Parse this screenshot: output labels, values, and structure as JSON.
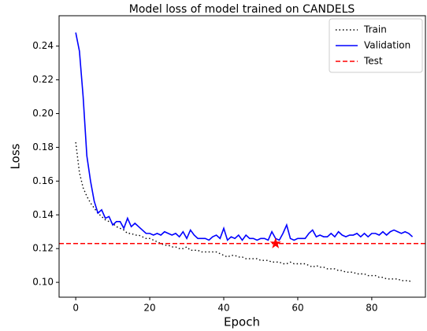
{
  "chart_data": {
    "type": "line",
    "title": "Model loss of model trained on CANDELS",
    "xlabel": "Epoch",
    "ylabel": "Loss",
    "x": [
      0,
      1,
      2,
      3,
      4,
      5,
      6,
      7,
      8,
      9,
      10,
      11,
      12,
      13,
      14,
      15,
      16,
      17,
      18,
      19,
      20,
      21,
      22,
      23,
      24,
      25,
      26,
      27,
      28,
      29,
      30,
      31,
      32,
      33,
      34,
      35,
      36,
      37,
      38,
      39,
      40,
      41,
      42,
      43,
      44,
      45,
      46,
      47,
      48,
      49,
      50,
      51,
      52,
      53,
      54,
      55,
      56,
      57,
      58,
      59,
      60,
      61,
      62,
      63,
      64,
      65,
      66,
      67,
      68,
      69,
      70,
      71,
      72,
      73,
      74,
      75,
      76,
      77,
      78,
      79,
      80,
      81,
      82,
      83,
      84,
      85,
      86,
      87,
      88,
      89,
      90,
      91
    ],
    "series": [
      {
        "name": "Train",
        "color": "#000000",
        "style": "dotted",
        "values": [
          0.183,
          0.165,
          0.156,
          0.151,
          0.147,
          0.144,
          0.141,
          0.139,
          0.137,
          0.136,
          0.135,
          0.133,
          0.132,
          0.131,
          0.129,
          0.129,
          0.128,
          0.128,
          0.127,
          0.126,
          0.126,
          0.125,
          0.124,
          0.123,
          0.122,
          0.122,
          0.121,
          0.121,
          0.12,
          0.12,
          0.121,
          0.119,
          0.119,
          0.119,
          0.118,
          0.118,
          0.118,
          0.118,
          0.118,
          0.117,
          0.116,
          0.115,
          0.116,
          0.116,
          0.115,
          0.115,
          0.114,
          0.114,
          0.114,
          0.114,
          0.113,
          0.113,
          0.113,
          0.112,
          0.112,
          0.112,
          0.111,
          0.111,
          0.112,
          0.111,
          0.111,
          0.111,
          0.111,
          0.11,
          0.109,
          0.11,
          0.109,
          0.109,
          0.108,
          0.108,
          0.108,
          0.107,
          0.107,
          0.106,
          0.106,
          0.106,
          0.105,
          0.105,
          0.105,
          0.104,
          0.104,
          0.104,
          0.103,
          0.103,
          0.102,
          0.102,
          0.102,
          0.102,
          0.101,
          0.101,
          0.101,
          0.1
        ]
      },
      {
        "name": "Validation",
        "color": "#0000ff",
        "style": "solid",
        "values": [
          0.248,
          0.237,
          0.21,
          0.175,
          0.16,
          0.148,
          0.141,
          0.143,
          0.138,
          0.139,
          0.134,
          0.136,
          0.136,
          0.132,
          0.138,
          0.133,
          0.135,
          0.133,
          0.131,
          0.129,
          0.129,
          0.128,
          0.129,
          0.128,
          0.13,
          0.129,
          0.128,
          0.129,
          0.127,
          0.13,
          0.126,
          0.131,
          0.128,
          0.126,
          0.126,
          0.126,
          0.125,
          0.127,
          0.128,
          0.126,
          0.132,
          0.125,
          0.127,
          0.126,
          0.128,
          0.125,
          0.128,
          0.126,
          0.126,
          0.125,
          0.126,
          0.126,
          0.125,
          0.13,
          0.126,
          0.125,
          0.129,
          0.134,
          0.126,
          0.125,
          0.126,
          0.126,
          0.126,
          0.129,
          0.131,
          0.127,
          0.128,
          0.127,
          0.127,
          0.129,
          0.127,
          0.13,
          0.128,
          0.127,
          0.128,
          0.128,
          0.129,
          0.127,
          0.129,
          0.127,
          0.129,
          0.129,
          0.128,
          0.13,
          0.128,
          0.13,
          0.131,
          0.13,
          0.129,
          0.13,
          0.129,
          0.127
        ]
      },
      {
        "name": "Test",
        "color": "#ff0000",
        "style": "dashed",
        "value": 0.123
      }
    ],
    "marker": {
      "x": 54,
      "y": 0.123,
      "color": "#ff0000"
    },
    "xlim": [
      -4.5,
      94.5
    ],
    "xticks": [
      0,
      20,
      40,
      60,
      80
    ],
    "ylim": [
      0.0912,
      0.258
    ],
    "yticks": [
      {
        "value": 0.1,
        "label": "0.10"
      },
      0.12,
      0.14,
      0.16,
      0.18,
      {
        "value": 0.2,
        "label": "0.20"
      },
      0.22,
      0.24
    ],
    "legend": "upper right"
  }
}
